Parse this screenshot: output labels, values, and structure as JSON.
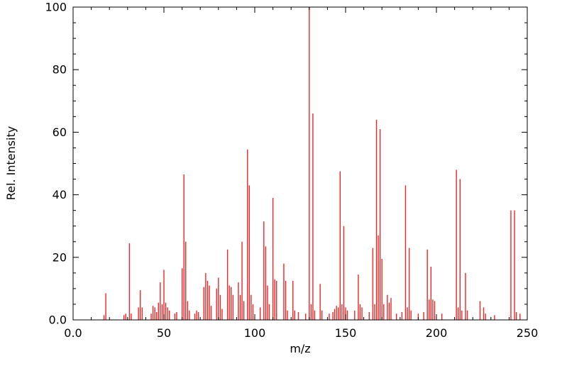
{
  "figure": {
    "background": "#ffffff",
    "axis_color": "#000000"
  },
  "chart_data": {
    "type": "bar",
    "subtype": "mass-spectrum-stick-plot",
    "title": "",
    "xlabel": "m/z",
    "ylabel": "Rel. Intensity",
    "xlim": [
      0,
      250
    ],
    "ylim": [
      0,
      100
    ],
    "grid": false,
    "legend": "none",
    "series_color": "#ee2626",
    "x_major_step": 50,
    "x_minor_step": 10,
    "y_major_step": 20,
    "y_minor_step": 5,
    "x_ticks": [
      {
        "v": 0,
        "label": "0.0"
      },
      {
        "v": 50,
        "label": "50"
      },
      {
        "v": 100,
        "label": "100"
      },
      {
        "v": 150,
        "label": "150"
      },
      {
        "v": 200,
        "label": "200"
      },
      {
        "v": 250,
        "label": "250"
      }
    ],
    "y_ticks": [
      {
        "v": 0,
        "label": "0.0"
      },
      {
        "v": 20,
        "label": "20"
      },
      {
        "v": 40,
        "label": "40"
      },
      {
        "v": 60,
        "label": "60"
      },
      {
        "v": 80,
        "label": "80"
      },
      {
        "v": 100,
        "label": "100"
      }
    ],
    "peaks": [
      [
        17,
        1.5
      ],
      [
        18,
        8.5
      ],
      [
        28,
        1.5
      ],
      [
        29,
        2
      ],
      [
        31,
        24.5
      ],
      [
        32,
        2
      ],
      [
        36,
        4
      ],
      [
        37,
        9.5
      ],
      [
        38,
        4
      ],
      [
        43,
        2
      ],
      [
        44,
        4.5
      ],
      [
        45,
        4
      ],
      [
        46,
        2.5
      ],
      [
        47,
        5.5
      ],
      [
        48,
        12
      ],
      [
        49,
        5
      ],
      [
        50,
        16
      ],
      [
        51,
        5.5
      ],
      [
        52,
        4
      ],
      [
        53,
        3
      ],
      [
        56,
        2
      ],
      [
        57,
        2.5
      ],
      [
        60,
        16.5
      ],
      [
        61,
        46.5
      ],
      [
        62,
        25
      ],
      [
        63,
        6
      ],
      [
        64,
        3
      ],
      [
        67,
        2
      ],
      [
        68,
        3
      ],
      [
        69,
        2.5
      ],
      [
        72,
        10.5
      ],
      [
        73,
        15
      ],
      [
        74,
        12.5
      ],
      [
        75,
        11
      ],
      [
        76,
        4.5
      ],
      [
        79,
        10
      ],
      [
        80,
        13.5
      ],
      [
        81,
        8
      ],
      [
        82,
        3.5
      ],
      [
        85,
        22.5
      ],
      [
        86,
        11
      ],
      [
        87,
        10.5
      ],
      [
        88,
        8
      ],
      [
        91,
        12
      ],
      [
        92,
        8
      ],
      [
        93,
        25
      ],
      [
        94,
        6
      ],
      [
        96,
        54.5
      ],
      [
        97,
        43
      ],
      [
        98,
        8
      ],
      [
        99,
        5
      ],
      [
        103,
        4
      ],
      [
        105,
        31.5
      ],
      [
        106,
        23.5
      ],
      [
        107,
        11
      ],
      [
        108,
        5
      ],
      [
        110,
        39
      ],
      [
        111,
        13
      ],
      [
        112,
        12.5
      ],
      [
        116,
        18
      ],
      [
        117,
        12.5
      ],
      [
        118,
        3
      ],
      [
        121,
        12.5
      ],
      [
        122,
        3
      ],
      [
        124,
        2.5
      ],
      [
        128,
        2
      ],
      [
        130,
        100
      ],
      [
        131,
        5
      ],
      [
        132,
        66
      ],
      [
        133,
        3
      ],
      [
        136,
        11.5
      ],
      [
        137,
        3
      ],
      [
        141,
        2
      ],
      [
        143,
        2.5
      ],
      [
        144,
        3.5
      ],
      [
        145,
        4.5
      ],
      [
        146,
        4
      ],
      [
        147,
        47.5
      ],
      [
        148,
        5
      ],
      [
        149,
        30
      ],
      [
        150,
        4
      ],
      [
        151,
        3
      ],
      [
        155,
        3
      ],
      [
        157,
        14.5
      ],
      [
        158,
        5
      ],
      [
        159,
        4
      ],
      [
        163,
        2.5
      ],
      [
        165,
        23
      ],
      [
        166,
        5
      ],
      [
        167,
        64
      ],
      [
        168,
        27
      ],
      [
        169,
        61
      ],
      [
        170,
        19.5
      ],
      [
        171,
        5
      ],
      [
        173,
        8
      ],
      [
        174,
        5.5
      ],
      [
        175,
        7
      ],
      [
        178,
        2
      ],
      [
        181,
        2.5
      ],
      [
        183,
        43
      ],
      [
        184,
        4
      ],
      [
        185,
        23
      ],
      [
        186,
        3
      ],
      [
        190,
        2
      ],
      [
        193,
        2.5
      ],
      [
        195,
        22.5
      ],
      [
        196,
        6.5
      ],
      [
        197,
        17
      ],
      [
        198,
        6.5
      ],
      [
        199,
        6
      ],
      [
        203,
        2
      ],
      [
        211,
        48
      ],
      [
        212,
        4
      ],
      [
        213,
        45
      ],
      [
        214,
        3
      ],
      [
        216,
        15
      ],
      [
        217,
        3
      ],
      [
        224,
        6
      ],
      [
        226,
        4
      ],
      [
        227,
        2
      ],
      [
        232,
        1.5
      ],
      [
        241,
        35
      ],
      [
        243,
        35
      ],
      [
        244,
        2.5
      ],
      [
        246,
        2
      ]
    ]
  }
}
